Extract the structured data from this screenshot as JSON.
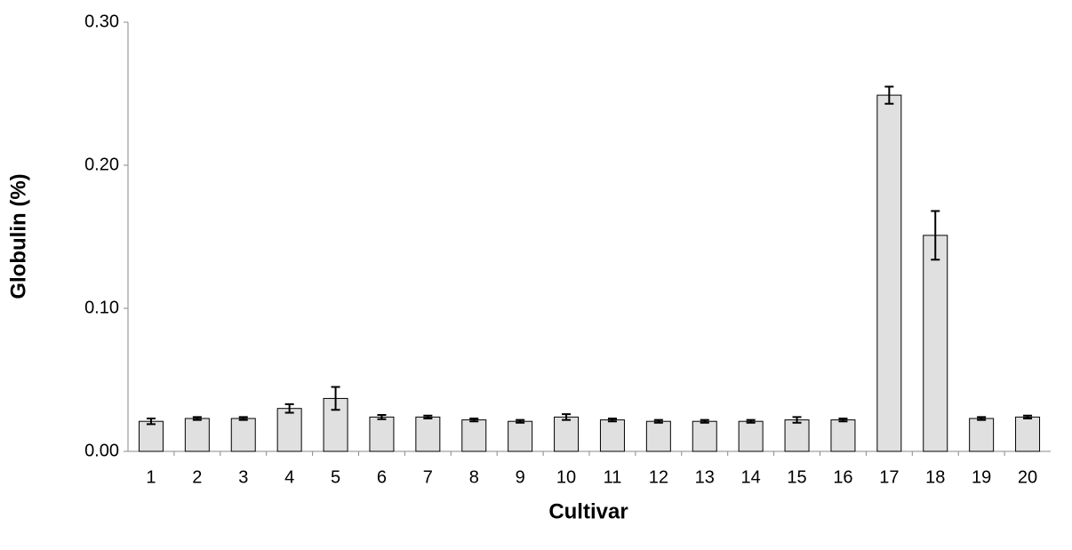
{
  "chart_data": {
    "type": "bar",
    "x_label": "Cultivar",
    "y_label": "Globulin (%)",
    "categories": [
      "1",
      "2",
      "3",
      "4",
      "5",
      "6",
      "7",
      "8",
      "9",
      "10",
      "11",
      "12",
      "13",
      "14",
      "15",
      "16",
      "17",
      "18",
      "19",
      "20"
    ],
    "values": [
      0.021,
      0.023,
      0.023,
      0.03,
      0.037,
      0.024,
      0.024,
      0.022,
      0.021,
      0.024,
      0.022,
      0.021,
      0.021,
      0.021,
      0.022,
      0.022,
      0.249,
      0.151,
      0.023,
      0.024
    ],
    "errors": [
      0.002,
      0.001,
      0.001,
      0.003,
      0.008,
      0.0015,
      0.001,
      0.001,
      0.001,
      0.002,
      0.001,
      0.001,
      0.001,
      0.001,
      0.002,
      0.001,
      0.006,
      0.017,
      0.001,
      0.001
    ],
    "color": "#e0e0e0",
    "ylim": [
      0,
      0.3
    ],
    "yticks": [
      {
        "value": 0,
        "label": "0.00"
      },
      {
        "value": 0.1,
        "label": "0.10"
      },
      {
        "value": 0.2,
        "label": "0.20"
      },
      {
        "value": 0.3,
        "label": "0.30"
      }
    ],
    "grid": false
  }
}
